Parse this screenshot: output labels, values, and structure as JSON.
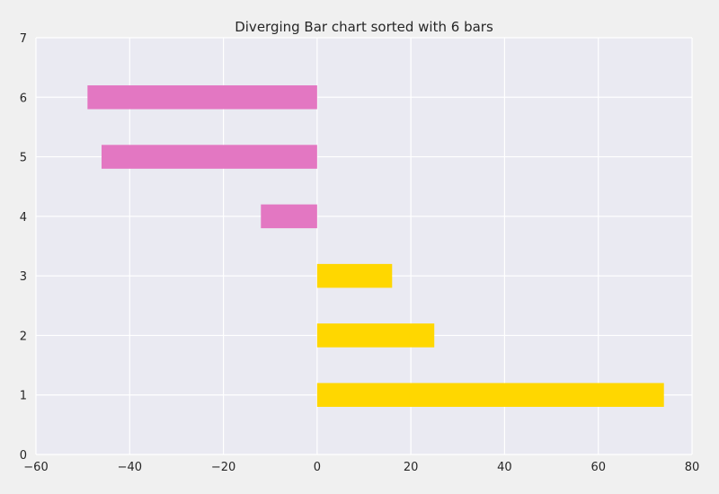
{
  "chart_data": {
    "type": "bar",
    "orientation": "horizontal",
    "title": "Diverging Bar chart sorted with 6 bars",
    "xlabel": "",
    "ylabel": "",
    "xlim": [
      -60,
      80
    ],
    "ylim": [
      0,
      7
    ],
    "xticks": [
      -60,
      -40,
      -20,
      0,
      20,
      40,
      60,
      80
    ],
    "xtick_labels": [
      "−60",
      "−40",
      "−20",
      "0",
      "20",
      "40",
      "60",
      "80"
    ],
    "yticks": [
      0,
      1,
      2,
      3,
      4,
      5,
      6,
      7
    ],
    "ytick_labels": [
      "0",
      "1",
      "2",
      "3",
      "4",
      "5",
      "6",
      "7"
    ],
    "grid": true,
    "bar_height": 0.4,
    "categories": [
      1,
      2,
      3,
      4,
      5,
      6
    ],
    "values": [
      74,
      25,
      16,
      -12,
      -46,
      -49
    ],
    "colors": {
      "positive": "#ffd700",
      "negative": "#e377c2",
      "plot_background": "#eaeaf2",
      "grid": "#ffffff",
      "figure_background": "#f0f0f0"
    }
  }
}
